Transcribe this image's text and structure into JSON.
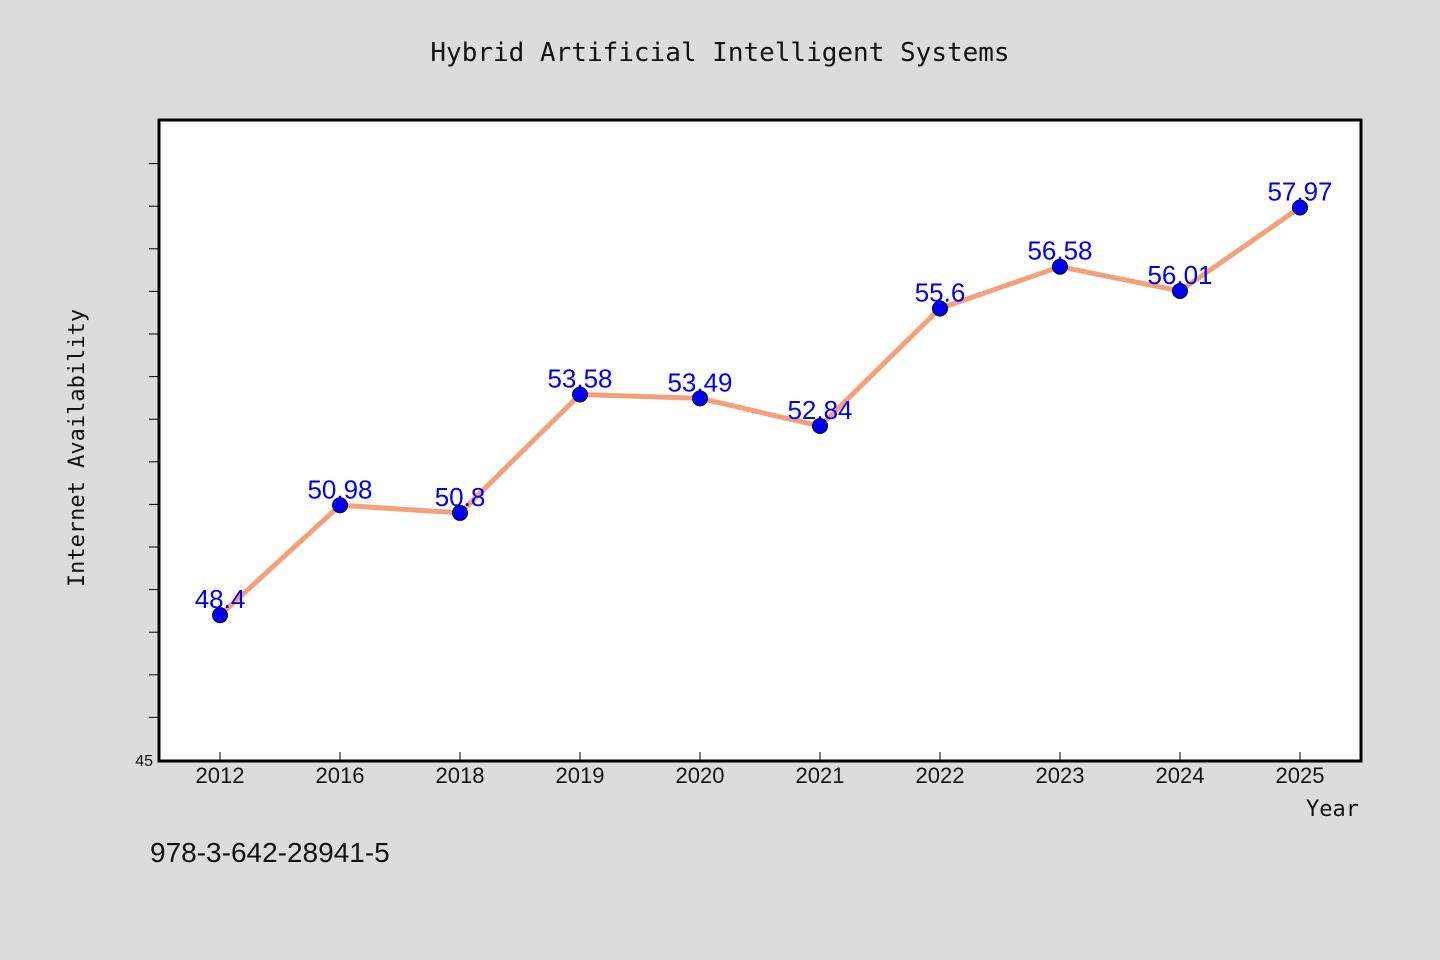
{
  "chart_data": {
    "type": "line",
    "title": "Hybrid Artificial Intelligent Systems",
    "xlabel": "Year",
    "ylabel": "Internet Availability",
    "categories": [
      "2012",
      "2016",
      "2018",
      "2019",
      "2020",
      "2021",
      "2022",
      "2023",
      "2024",
      "2025"
    ],
    "series": [
      {
        "values": [
          48.4,
          50.98,
          50.8,
          53.58,
          53.49,
          52.84,
          55.6,
          56.58,
          56.01,
          57.97
        ],
        "data_labels": [
          "48.4",
          "50.98",
          "50.8",
          "53.58",
          "53.49",
          "52.84",
          "55.6",
          "56.58",
          "56.01",
          "57.97"
        ],
        "line_color": "#f4a07a",
        "marker_color": "#0000ee"
      }
    ],
    "ylim": [
      45,
      60
    ],
    "y_tick_labels": [
      "45"
    ],
    "grid": false,
    "legend": "none"
  },
  "footer": {
    "isbn": "978-3-642-28941-5"
  },
  "colors": {
    "background": "#dcdcdc",
    "plot_background": "#ffffff",
    "line": "#f4a07a",
    "marker": "#0000ee",
    "data_label": "#0000ee"
  }
}
